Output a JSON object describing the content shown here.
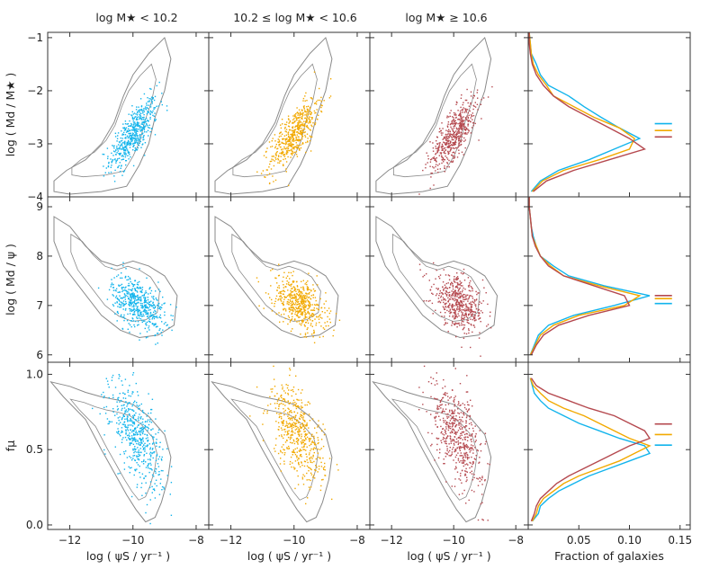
{
  "chart_data": {
    "type": "scatter",
    "column_titles": [
      "log M★ < 10.2",
      "10.2 ≤ log M★ < 10.6",
      "log M★ ≥ 10.6"
    ],
    "series_colors": [
      "#12b4ec",
      "#f2a900",
      "#b5494f"
    ],
    "contour_color": "#8a8a8a",
    "x_label": "log ( ψS / yr⁻¹ )",
    "x_range": [
      -12.7,
      -7.6
    ],
    "x_ticks": [
      {
        "v": -12,
        "t": "−12"
      },
      {
        "v": -10,
        "t": "−10"
      },
      {
        "v": -8,
        "t": "−8"
      }
    ],
    "hist_label": "Fraction of galaxies",
    "hist_range": [
      0,
      0.16
    ],
    "hist_ticks": [
      {
        "v": 0.05,
        "t": "0.05"
      },
      {
        "v": 0.1,
        "t": "0.10"
      },
      {
        "v": 0.15,
        "t": "0.15"
      }
    ],
    "rows": [
      {
        "ylabel": "log ( Md / M★ )",
        "y_range": [
          -4.0,
          -0.9
        ],
        "y_ticks": [
          {
            "v": -1,
            "t": "−1"
          },
          {
            "v": -2,
            "t": "−2"
          },
          {
            "v": -3,
            "t": "−3"
          },
          {
            "v": -4,
            "t": "−4"
          }
        ],
        "trend": {
          "slope": 0.65,
          "x0": -10.0,
          "y0": -2.8,
          "sx": 0.38,
          "sy": 0.22,
          "rx": [
            -11.0,
            -9.0
          ]
        },
        "contour": [
          [
            -12.5,
            -3.7
          ],
          [
            -12.1,
            -3.5
          ],
          [
            -11.5,
            -3.3
          ],
          [
            -11.0,
            -3.0
          ],
          [
            -10.6,
            -2.6
          ],
          [
            -10.3,
            -2.1
          ],
          [
            -10.0,
            -1.7
          ],
          [
            -9.5,
            -1.3
          ],
          [
            -9.0,
            -1.0
          ],
          [
            -8.8,
            -1.4
          ],
          [
            -9.0,
            -2.0
          ],
          [
            -9.3,
            -2.5
          ],
          [
            -9.5,
            -3.0
          ],
          [
            -9.8,
            -3.4
          ],
          [
            -10.2,
            -3.8
          ],
          [
            -11.0,
            -3.9
          ],
          [
            -12.0,
            -3.95
          ],
          [
            -12.5,
            -3.9
          ]
        ],
        "hist": {
          "bins": [
            -4.0,
            -3.8,
            -3.6,
            -3.4,
            -3.2,
            -3.0,
            -2.8,
            -2.6,
            -2.4,
            -2.2,
            -2.0,
            -1.8,
            -1.6,
            -1.4,
            -1.2,
            -1.0
          ],
          "series": [
            {
              "name": "log M★ < 10.2",
              "values": [
                0.003,
                0.012,
                0.03,
                0.06,
                0.085,
                0.11,
                0.09,
                0.072,
                0.055,
                0.04,
                0.02,
                0.012,
                0.008,
                0.003,
                0.002,
                0.001
              ],
              "median": -2.62
            },
            {
              "name": "10.2 ≤ log M★ < 10.6",
              "values": [
                0.004,
                0.014,
                0.035,
                0.07,
                0.1,
                0.105,
                0.09,
                0.065,
                0.045,
                0.025,
                0.018,
                0.01,
                0.005,
                0.003,
                0.002,
                0.001
              ],
              "median": -2.75
            },
            {
              "name": "log M★ ≥ 10.6",
              "values": [
                0.005,
                0.018,
                0.045,
                0.08,
                0.115,
                0.1,
                0.08,
                0.06,
                0.04,
                0.025,
                0.015,
                0.008,
                0.004,
                0.002,
                0.001,
                0.001
              ],
              "median": -2.87
            }
          ]
        }
      },
      {
        "ylabel": "log ( Md / ψ )",
        "y_range": [
          5.85,
          9.2
        ],
        "y_ticks": [
          {
            "v": 6,
            "t": "6"
          },
          {
            "v": 7,
            "t": "7"
          },
          {
            "v": 8,
            "t": "8"
          },
          {
            "v": 9,
            "t": "9"
          }
        ],
        "trend": {
          "slope": -0.3,
          "x0": -9.85,
          "y0": 7.05,
          "sx": 0.42,
          "sy": 0.25,
          "rx": [
            -11.0,
            -8.8
          ]
        },
        "contour": [
          [
            -12.5,
            8.8
          ],
          [
            -12.0,
            8.6
          ],
          [
            -11.5,
            8.2
          ],
          [
            -11.0,
            7.9
          ],
          [
            -10.5,
            7.8
          ],
          [
            -10.0,
            7.9
          ],
          [
            -9.5,
            7.8
          ],
          [
            -9.0,
            7.6
          ],
          [
            -8.6,
            7.2
          ],
          [
            -8.7,
            6.6
          ],
          [
            -9.2,
            6.4
          ],
          [
            -9.8,
            6.35
          ],
          [
            -10.4,
            6.5
          ],
          [
            -11.0,
            6.8
          ],
          [
            -11.6,
            7.3
          ],
          [
            -12.2,
            7.8
          ],
          [
            -12.5,
            8.3
          ]
        ],
        "hist": {
          "bins": [
            5.9,
            6.1,
            6.3,
            6.5,
            6.7,
            6.9,
            7.1,
            7.3,
            7.5,
            7.7,
            7.9,
            8.1,
            8.3,
            8.5,
            8.7,
            8.9,
            9.1
          ],
          "series": [
            {
              "name": "log M★ < 10.2",
              "values": [
                0.002,
                0.006,
                0.01,
                0.02,
                0.045,
                0.085,
                0.12,
                0.075,
                0.04,
                0.025,
                0.012,
                0.008,
                0.005,
                0.003,
                0.002,
                0.001,
                0.001
              ],
              "median": 7.04
            },
            {
              "name": "10.2 ≤ log M★ < 10.6",
              "values": [
                0.002,
                0.007,
                0.012,
                0.025,
                0.05,
                0.095,
                0.11,
                0.07,
                0.035,
                0.022,
                0.012,
                0.008,
                0.004,
                0.003,
                0.002,
                0.001,
                0.001
              ],
              "median": 7.14
            },
            {
              "name": "log M★ ≥ 10.6",
              "values": [
                0.003,
                0.008,
                0.015,
                0.03,
                0.06,
                0.1,
                0.095,
                0.065,
                0.035,
                0.02,
                0.012,
                0.007,
                0.004,
                0.003,
                0.002,
                0.001,
                0.001
              ],
              "median": 7.2
            }
          ]
        }
      },
      {
        "ylabel": "fμ",
        "y_range": [
          -0.03,
          1.08
        ],
        "y_ticks": [
          {
            "v": 0.0,
            "t": "0.0"
          },
          {
            "v": 0.5,
            "t": "0.5"
          },
          {
            "v": 1.0,
            "t": "1.0"
          }
        ],
        "trend": {
          "slope": -0.22,
          "x0": -9.9,
          "y0": 0.6,
          "sx": 0.42,
          "sy": 0.14,
          "rx": [
            -11.3,
            -8.9
          ]
        },
        "contour": [
          [
            -12.6,
            0.95
          ],
          [
            -12.0,
            0.92
          ],
          [
            -11.5,
            0.88
          ],
          [
            -11.0,
            0.85
          ],
          [
            -10.5,
            0.83
          ],
          [
            -10.0,
            0.8
          ],
          [
            -9.5,
            0.72
          ],
          [
            -9.0,
            0.6
          ],
          [
            -8.8,
            0.45
          ],
          [
            -8.9,
            0.3
          ],
          [
            -9.1,
            0.15
          ],
          [
            -9.3,
            0.05
          ],
          [
            -9.6,
            0.02
          ],
          [
            -9.9,
            0.1
          ],
          [
            -10.2,
            0.2
          ],
          [
            -10.6,
            0.35
          ],
          [
            -11.0,
            0.5
          ],
          [
            -11.5,
            0.7
          ],
          [
            -12.2,
            0.85
          ]
        ],
        "hist": {
          "bins": [
            0.0,
            0.05,
            0.1,
            0.15,
            0.2,
            0.25,
            0.3,
            0.35,
            0.4,
            0.45,
            0.5,
            0.55,
            0.6,
            0.65,
            0.7,
            0.75,
            0.8,
            0.85,
            0.9,
            0.95
          ],
          "series": [
            {
              "name": "log M★ < 10.2",
              "values": [
                0.004,
                0.01,
                0.012,
                0.02,
                0.03,
                0.045,
                0.06,
                0.08,
                0.1,
                0.12,
                0.115,
                0.09,
                0.07,
                0.05,
                0.035,
                0.02,
                0.012,
                0.006,
                0.004,
                0.002
              ],
              "median": 0.53
            },
            {
              "name": "10.2 ≤ log M★ < 10.6",
              "values": [
                0.004,
                0.008,
                0.01,
                0.015,
                0.025,
                0.035,
                0.05,
                0.07,
                0.09,
                0.105,
                0.12,
                0.1,
                0.085,
                0.07,
                0.055,
                0.035,
                0.02,
                0.012,
                0.005,
                0.002
              ],
              "median": 0.6
            },
            {
              "name": "log M★ ≥ 10.6",
              "values": [
                0.003,
                0.006,
                0.008,
                0.012,
                0.02,
                0.028,
                0.04,
                0.055,
                0.07,
                0.085,
                0.1,
                0.12,
                0.115,
                0.1,
                0.085,
                0.06,
                0.04,
                0.02,
                0.008,
                0.003
              ],
              "median": 0.67
            }
          ]
        }
      }
    ]
  }
}
